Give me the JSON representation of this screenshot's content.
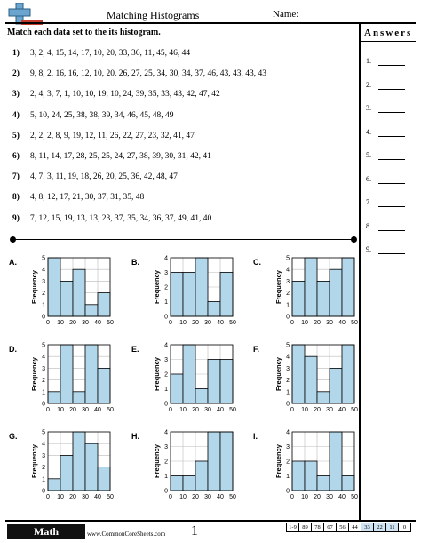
{
  "header": {
    "title": "Matching Histograms",
    "name_label": "Name:"
  },
  "instructions": "Match each data set to the its histogram.",
  "problems": [
    {
      "label": "1)",
      "data": "3, 2, 4, 15, 14, 17, 10, 20, 33, 36, 11, 45, 46, 44"
    },
    {
      "label": "2)",
      "data": "9, 8, 2, 16, 16, 12, 10, 20, 26, 27, 25, 34, 30, 34, 37, 46, 43, 43, 43, 43"
    },
    {
      "label": "3)",
      "data": "2, 4, 3, 7, 1, 10, 10, 19, 10, 24, 39, 35, 33, 43, 42, 47, 42"
    },
    {
      "label": "4)",
      "data": "5, 10, 24, 25, 38, 38, 39, 34, 46, 45, 48, 49"
    },
    {
      "label": "5)",
      "data": "2, 2, 2, 8, 9, 19, 12, 11, 26, 22, 27, 23, 32, 41, 47"
    },
    {
      "label": "6)",
      "data": "8, 11, 14, 17, 28, 25, 25, 24, 27, 38, 39, 30, 31, 42, 41"
    },
    {
      "label": "7)",
      "data": "4, 7, 3, 11, 19, 18, 26, 20, 25, 36, 42, 48, 47"
    },
    {
      "label": "8)",
      "data": "4, 8, 12, 17, 21, 30, 37, 31, 35, 48"
    },
    {
      "label": "9)",
      "data": "7, 12, 15, 19, 13, 13, 23, 37, 35, 34, 36, 37, 49, 41, 40"
    }
  ],
  "answers": {
    "title": "Answers",
    "items": [
      "1.",
      "2.",
      "3.",
      "4.",
      "5.",
      "6.",
      "7.",
      "8.",
      "9."
    ]
  },
  "histograms": [
    {
      "label": "A.",
      "ymax": 5,
      "values": [
        5,
        3,
        4,
        1,
        2
      ]
    },
    {
      "label": "B.",
      "ymax": 4,
      "values": [
        3,
        3,
        4,
        1,
        3
      ]
    },
    {
      "label": "C.",
      "ymax": 5,
      "values": [
        3,
        5,
        3,
        4,
        5
      ]
    },
    {
      "label": "D.",
      "ymax": 5,
      "values": [
        1,
        5,
        1,
        5,
        3
      ]
    },
    {
      "label": "E.",
      "ymax": 4,
      "values": [
        2,
        4,
        1,
        3,
        3
      ]
    },
    {
      "label": "F.",
      "ymax": 5,
      "values": [
        5,
        4,
        1,
        3,
        5
      ]
    },
    {
      "label": "G.",
      "ymax": 5,
      "values": [
        1,
        3,
        5,
        4,
        2
      ]
    },
    {
      "label": "H.",
      "ymax": 4,
      "values": [
        1,
        1,
        2,
        4,
        4
      ]
    },
    {
      "label": "I.",
      "ymax": 4,
      "values": [
        2,
        2,
        1,
        4,
        1
      ]
    }
  ],
  "chart_common": {
    "ylabel": "Frequency",
    "xticks": [
      "0",
      "10",
      "20",
      "30",
      "40",
      "50"
    ],
    "bar_color": "#b3d7ea"
  },
  "footer": {
    "brand": "Math",
    "site": "www.CommonCoreSheets.com",
    "page": "1",
    "scores": [
      "1-9",
      "89",
      "78",
      "67",
      "56",
      "44",
      "33",
      "22",
      "11",
      "0"
    ]
  }
}
